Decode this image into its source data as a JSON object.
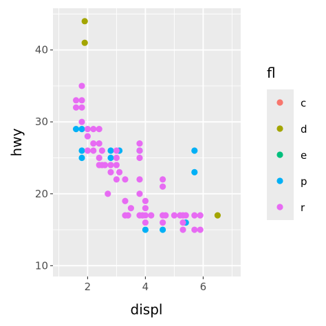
{
  "chart_data": {
    "type": "scatter",
    "title": "",
    "xlabel": "displ",
    "ylabel": "hwy",
    "xlim": [
      0.8,
      7.3
    ],
    "ylim": [
      8.5,
      45.8
    ],
    "x_ticks": [
      2,
      4,
      6
    ],
    "x_tick_labels": [
      "2",
      "4",
      "6"
    ],
    "y_ticks": [
      10,
      20,
      30,
      40
    ],
    "y_tick_labels": [
      "10",
      "20",
      "30",
      "40"
    ],
    "grid": true,
    "panel_background": "#ebebeb",
    "legend": {
      "title": "fl",
      "position": "right",
      "entries": [
        {
          "key": "c",
          "label": "c",
          "color": "#F8766D"
        },
        {
          "key": "d",
          "label": "d",
          "color": "#A3A500"
        },
        {
          "key": "e",
          "label": "e",
          "color": "#00BF7D"
        },
        {
          "key": "p",
          "label": "p",
          "color": "#00B0F6"
        },
        {
          "key": "r",
          "label": "r",
          "color": "#E76BF3"
        }
      ]
    },
    "series": [
      {
        "name": "d",
        "points": [
          [
            1.9,
            44
          ],
          [
            1.9,
            41
          ],
          [
            6.5,
            17
          ]
        ]
      },
      {
        "name": "p",
        "points": [
          [
            1.6,
            29
          ],
          [
            1.8,
            29
          ],
          [
            1.8,
            26
          ],
          [
            1.8,
            25
          ],
          [
            2.8,
            26
          ],
          [
            2.8,
            25
          ],
          [
            3.1,
            26
          ],
          [
            3.8,
            26
          ],
          [
            4.0,
            15
          ],
          [
            4.6,
            15
          ],
          [
            5.4,
            16
          ],
          [
            5.7,
            26
          ],
          [
            5.7,
            23
          ]
        ]
      },
      {
        "name": "r",
        "points": [
          [
            1.8,
            35
          ],
          [
            1.6,
            33
          ],
          [
            1.8,
            33
          ],
          [
            1.6,
            32
          ],
          [
            1.8,
            32
          ],
          [
            1.8,
            30
          ],
          [
            2.0,
            29
          ],
          [
            2.2,
            29
          ],
          [
            2.4,
            29
          ],
          [
            2.0,
            28
          ],
          [
            2.2,
            27
          ],
          [
            2.4,
            27
          ],
          [
            2.0,
            26
          ],
          [
            2.2,
            26
          ],
          [
            2.5,
            26
          ],
          [
            2.4,
            25
          ],
          [
            2.5,
            24
          ],
          [
            2.4,
            24
          ],
          [
            2.6,
            24
          ],
          [
            2.7,
            20
          ],
          [
            2.8,
            24
          ],
          [
            2.8,
            23
          ],
          [
            3.0,
            26
          ],
          [
            3.0,
            25
          ],
          [
            3.0,
            24
          ],
          [
            3.1,
            23
          ],
          [
            3.0,
            22
          ],
          [
            3.3,
            22
          ],
          [
            3.3,
            19
          ],
          [
            3.4,
            17
          ],
          [
            3.3,
            17
          ],
          [
            3.5,
            18
          ],
          [
            3.8,
            27
          ],
          [
            3.8,
            26
          ],
          [
            3.8,
            25
          ],
          [
            3.8,
            22
          ],
          [
            3.8,
            20
          ],
          [
            3.8,
            17
          ],
          [
            3.9,
            17
          ],
          [
            4.0,
            19
          ],
          [
            4.0,
            18
          ],
          [
            4.0,
            17
          ],
          [
            4.2,
            17
          ],
          [
            4.0,
            16
          ],
          [
            4.6,
            22
          ],
          [
            4.6,
            21
          ],
          [
            4.6,
            17
          ],
          [
            4.6,
            16
          ],
          [
            4.7,
            17
          ],
          [
            5.0,
            17
          ],
          [
            5.2,
            17
          ],
          [
            5.3,
            17
          ],
          [
            5.4,
            17
          ],
          [
            5.3,
            16
          ],
          [
            5.3,
            15
          ],
          [
            5.7,
            17
          ],
          [
            5.9,
            17
          ],
          [
            5.7,
            15
          ],
          [
            5.9,
            15
          ]
        ]
      }
    ]
  }
}
